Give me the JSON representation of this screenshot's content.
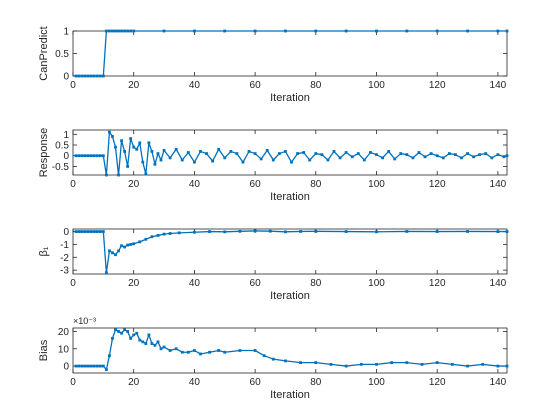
{
  "colors": {
    "series": "#0072BD",
    "axis": "#262626",
    "background": "#ffffff"
  },
  "chart_data": [
    {
      "type": "line",
      "title": "",
      "xlabel": "Iteration",
      "ylabel": "CanPredict",
      "xlim": [
        0,
        143
      ],
      "ylim": [
        0,
        1
      ],
      "xticks": [
        0,
        20,
        40,
        60,
        80,
        100,
        120,
        140
      ],
      "yticks": [
        0,
        0.5,
        1
      ],
      "ytick_labels": [
        "0",
        "0.5",
        "1"
      ],
      "grid": false,
      "x": [
        1,
        2,
        3,
        4,
        5,
        6,
        7,
        8,
        9,
        10,
        11,
        12,
        13,
        14,
        15,
        16,
        17,
        18,
        19,
        20,
        30,
        40,
        50,
        60,
        70,
        80,
        90,
        100,
        110,
        120,
        130,
        140,
        143
      ],
      "y": [
        0,
        0,
        0,
        0,
        0,
        0,
        0,
        0,
        0,
        0,
        1,
        1,
        1,
        1,
        1,
        1,
        1,
        1,
        1,
        1,
        1,
        1,
        1,
        1,
        1,
        1,
        1,
        1,
        1,
        1,
        1,
        1,
        1
      ]
    },
    {
      "type": "line",
      "title": "",
      "xlabel": "Iteration",
      "ylabel": "Response",
      "xlim": [
        0,
        143
      ],
      "ylim": [
        -0.9,
        1.2
      ],
      "xticks": [
        0,
        20,
        40,
        60,
        80,
        100,
        120,
        140
      ],
      "yticks": [
        -0.5,
        0,
        0.5,
        1
      ],
      "ytick_labels": [
        "-0.5",
        "0",
        "0.5",
        "1"
      ],
      "grid": false,
      "x": [
        1,
        2,
        3,
        4,
        5,
        6,
        7,
        8,
        9,
        10,
        11,
        12,
        13,
        14,
        15,
        16,
        17,
        18,
        19,
        20,
        21,
        22,
        23,
        24,
        25,
        26,
        27,
        28,
        29,
        30,
        32,
        34,
        36,
        38,
        40,
        42,
        44,
        46,
        48,
        50,
        52,
        54,
        56,
        58,
        60,
        62,
        64,
        66,
        68,
        70,
        72,
        74,
        76,
        78,
        80,
        82,
        84,
        86,
        88,
        90,
        92,
        94,
        96,
        98,
        100,
        102,
        104,
        106,
        108,
        110,
        112,
        114,
        116,
        118,
        120,
        122,
        124,
        126,
        128,
        130,
        132,
        134,
        136,
        138,
        140,
        142,
        143
      ],
      "y": [
        0,
        0,
        0,
        0,
        0,
        0,
        0,
        0,
        0,
        0,
        -0.9,
        1.1,
        0.9,
        0.4,
        -0.9,
        0.7,
        0.2,
        -0.5,
        0.8,
        0.4,
        0.3,
        0.6,
        -0.3,
        -0.85,
        0.6,
        0.2,
        -0.4,
        0.1,
        -0.2,
        0.25,
        -0.1,
        0.3,
        -0.2,
        0.15,
        -0.3,
        0.2,
        0.1,
        -0.25,
        0.3,
        -0.1,
        0.2,
        0.1,
        -0.3,
        0.2,
        0.1,
        -0.15,
        0.25,
        -0.2,
        0.1,
        0.2,
        -0.3,
        0.1,
        0.15,
        -0.2,
        0.1,
        0.05,
        -0.2,
        0.2,
        -0.1,
        0.15,
        -0.05,
        0.1,
        -0.2,
        0.15,
        0.05,
        -0.1,
        0.2,
        -0.15,
        0.1,
        0.05,
        -0.1,
        0.15,
        -0.05,
        0.1,
        0.0,
        -0.1,
        0.1,
        0.05,
        -0.1,
        0.1,
        -0.05,
        0.05,
        0.1,
        -0.1,
        0.05,
        -0.05,
        0.0
      ]
    },
    {
      "type": "line",
      "title": "",
      "xlabel": "Iteration",
      "ylabel": "β₁",
      "xlim": [
        0,
        143
      ],
      "ylim": [
        -3.3,
        0.2
      ],
      "xticks": [
        0,
        20,
        40,
        60,
        80,
        100,
        120,
        140
      ],
      "yticks": [
        -3,
        -2,
        -1,
        0
      ],
      "ytick_labels": [
        "-3",
        "-2",
        "-1",
        "0"
      ],
      "grid": false,
      "x": [
        1,
        2,
        3,
        4,
        5,
        6,
        7,
        8,
        9,
        10,
        11,
        12,
        13,
        14,
        15,
        16,
        17,
        18,
        19,
        20,
        22,
        24,
        26,
        28,
        30,
        32,
        35,
        40,
        45,
        50,
        55,
        60,
        65,
        70,
        75,
        80,
        90,
        100,
        110,
        120,
        130,
        140,
        143
      ],
      "y": [
        0,
        0,
        0,
        0,
        0,
        0,
        0,
        0,
        0,
        0,
        -3.2,
        -1.5,
        -1.65,
        -1.8,
        -1.5,
        -1.1,
        -1.2,
        -1.05,
        -1.0,
        -0.95,
        -0.8,
        -0.6,
        -0.4,
        -0.3,
        -0.2,
        -0.15,
        -0.1,
        -0.05,
        0,
        -0.02,
        0.02,
        0.05,
        0.03,
        -0.02,
        0.01,
        0.02,
        0,
        -0.02,
        0.01,
        0,
        0.01,
        0,
        0
      ]
    },
    {
      "type": "line",
      "title": "",
      "xlabel": "Iteration",
      "ylabel": "Bias",
      "xlim": [
        0,
        143
      ],
      "ylim": [
        -0.004,
        0.022
      ],
      "xticks": [
        0,
        20,
        40,
        60,
        80,
        100,
        120,
        140
      ],
      "yticks": [
        0,
        0.01,
        0.02
      ],
      "ytick_labels": [
        "0",
        "10",
        "20"
      ],
      "exponent_label": "×10⁻³",
      "grid": false,
      "x": [
        1,
        2,
        3,
        4,
        5,
        6,
        7,
        8,
        9,
        10,
        11,
        12,
        13,
        14,
        15,
        16,
        17,
        18,
        19,
        20,
        21,
        22,
        23,
        24,
        25,
        26,
        27,
        28,
        29,
        30,
        32,
        34,
        36,
        38,
        40,
        42,
        45,
        48,
        50,
        55,
        60,
        63,
        66,
        70,
        75,
        80,
        85,
        90,
        95,
        100,
        105,
        110,
        115,
        120,
        125,
        130,
        135,
        140,
        143
      ],
      "y": [
        0,
        0,
        0,
        0,
        0,
        0,
        0,
        0,
        0,
        0,
        -0.002,
        0.006,
        0.016,
        0.021,
        0.02,
        0.019,
        0.021,
        0.02,
        0.016,
        0.018,
        0.019,
        0.015,
        0.014,
        0.013,
        0.018,
        0.013,
        0.012,
        0.014,
        0.01,
        0.011,
        0.009,
        0.01,
        0.008,
        0.008,
        0.009,
        0.007,
        0.008,
        0.009,
        0.008,
        0.009,
        0.009,
        0.006,
        0.004,
        0.003,
        0.002,
        0.002,
        0.001,
        0.0,
        0.001,
        0.001,
        0.002,
        0.002,
        0.001,
        0.002,
        0.001,
        0.0,
        0.001,
        0.0,
        0.0
      ]
    }
  ]
}
